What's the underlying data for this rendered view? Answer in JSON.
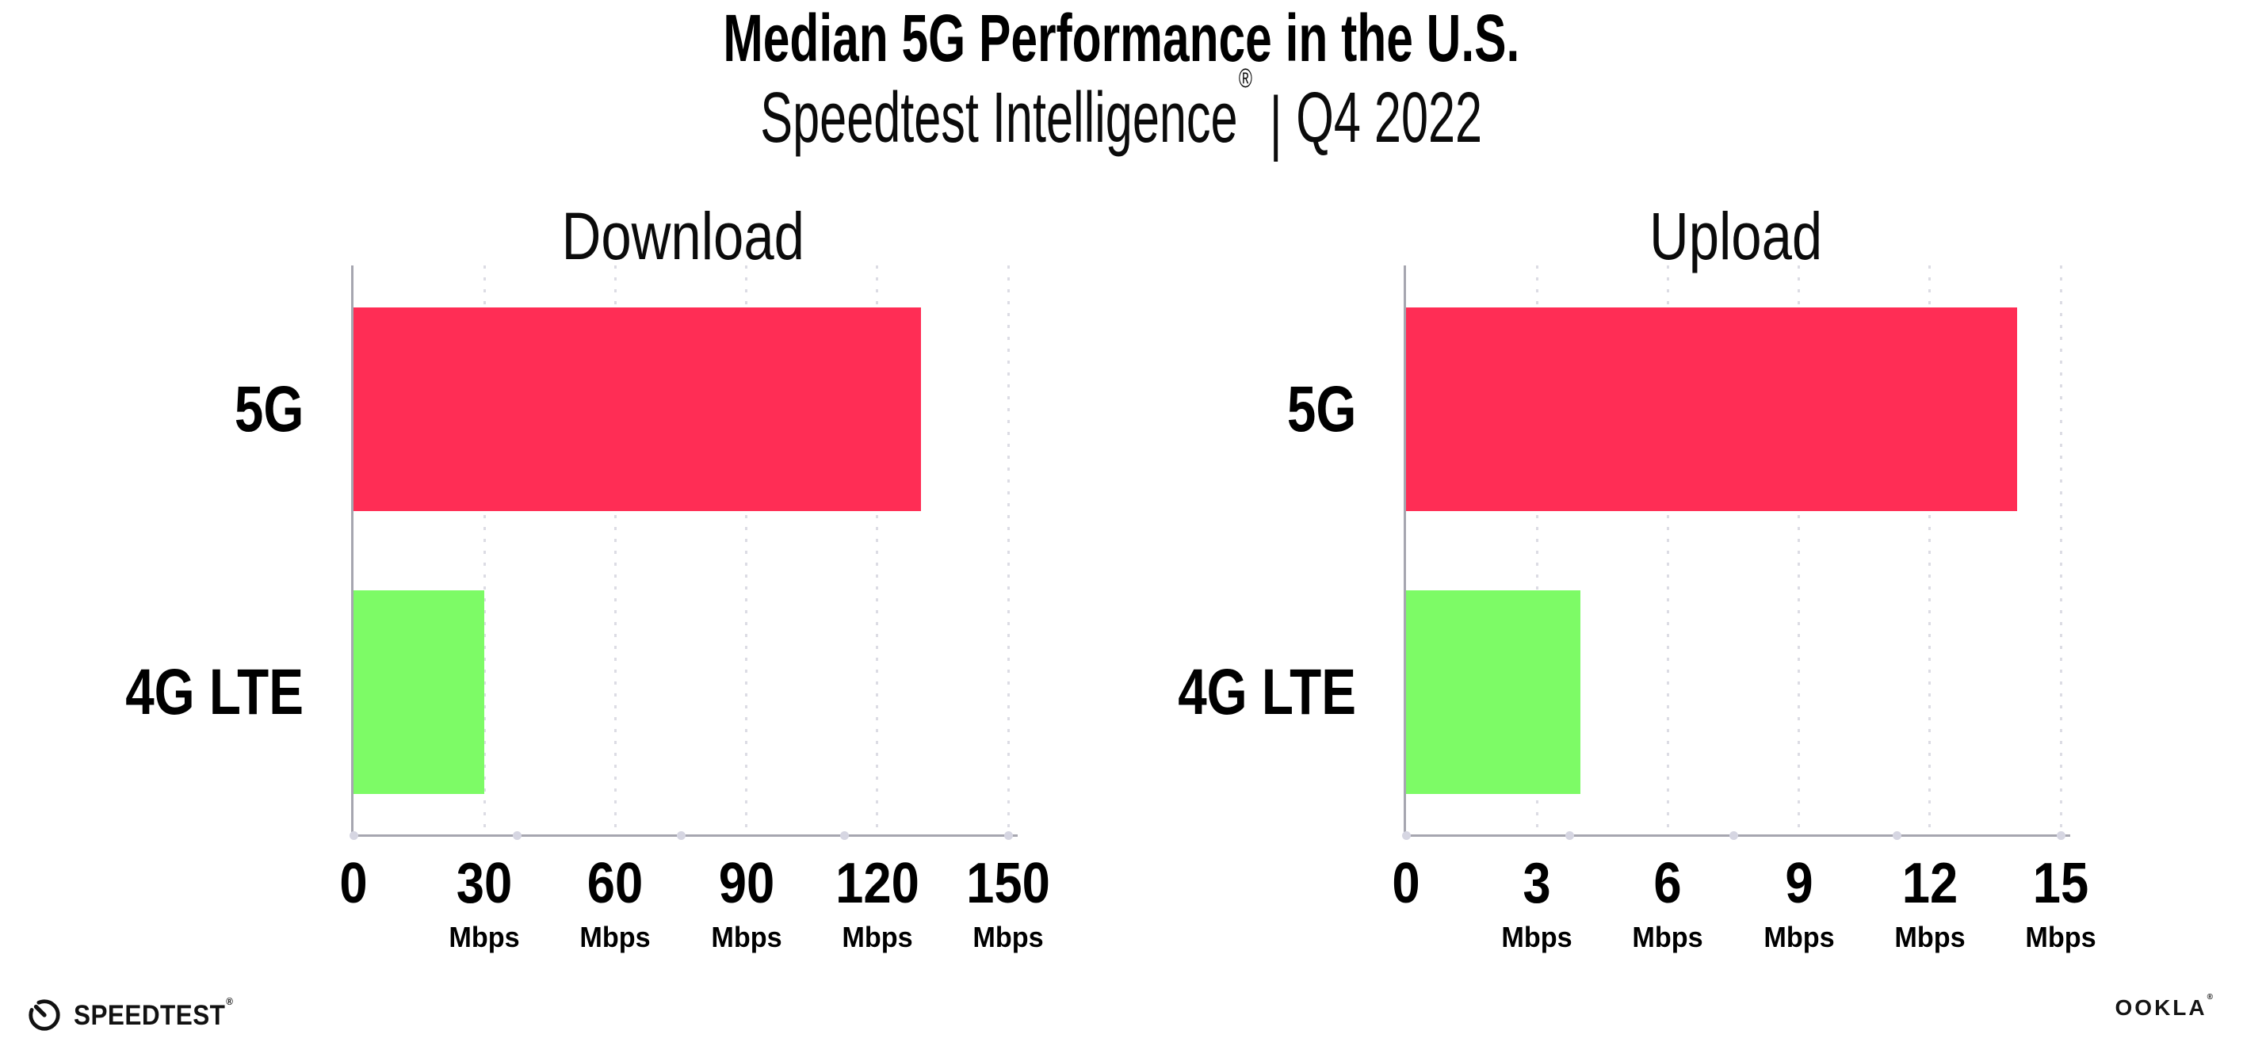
{
  "title": "Median 5G Performance in the U.S.",
  "subtitle": {
    "brand": "Speedtest Intelligence",
    "reg_mark": "®",
    "separator": "|",
    "period": "Q4 2022"
  },
  "colors": {
    "bar_5g": "#FF2D55",
    "bar_4g_lte": "#7DFB66",
    "axis_line": "#A6A6B0",
    "gridline_dot": "#DCDCE4",
    "axis_marker_dot": "#D6D6E2",
    "text": "#000000"
  },
  "chart_data": [
    {
      "type": "bar",
      "orientation": "horizontal",
      "title": "Download",
      "categories": [
        "5G",
        "4G LTE"
      ],
      "values": [
        130,
        30
      ],
      "unit": "Mbps",
      "xlim": [
        0,
        150
      ],
      "ticks": [
        0,
        30,
        60,
        90,
        120,
        150
      ],
      "bar_colors": [
        "#FF2D55",
        "#7DFB66"
      ],
      "grid": "dotted-vertical",
      "legend": "none"
    },
    {
      "type": "bar",
      "orientation": "horizontal",
      "title": "Upload",
      "categories": [
        "5G",
        "4G LTE"
      ],
      "values": [
        14,
        4
      ],
      "unit": "Mbps",
      "xlim": [
        0,
        15
      ],
      "ticks": [
        0,
        3,
        6,
        9,
        12,
        15
      ],
      "bar_colors": [
        "#FF2D55",
        "#7DFB66"
      ],
      "grid": "dotted-vertical",
      "legend": "none"
    }
  ],
  "footer": {
    "speedtest_logo_text": "SPEEDTEST",
    "speedtest_mark": "®",
    "ookla_logo_text": "OOKLA",
    "ookla_mark": "®"
  }
}
